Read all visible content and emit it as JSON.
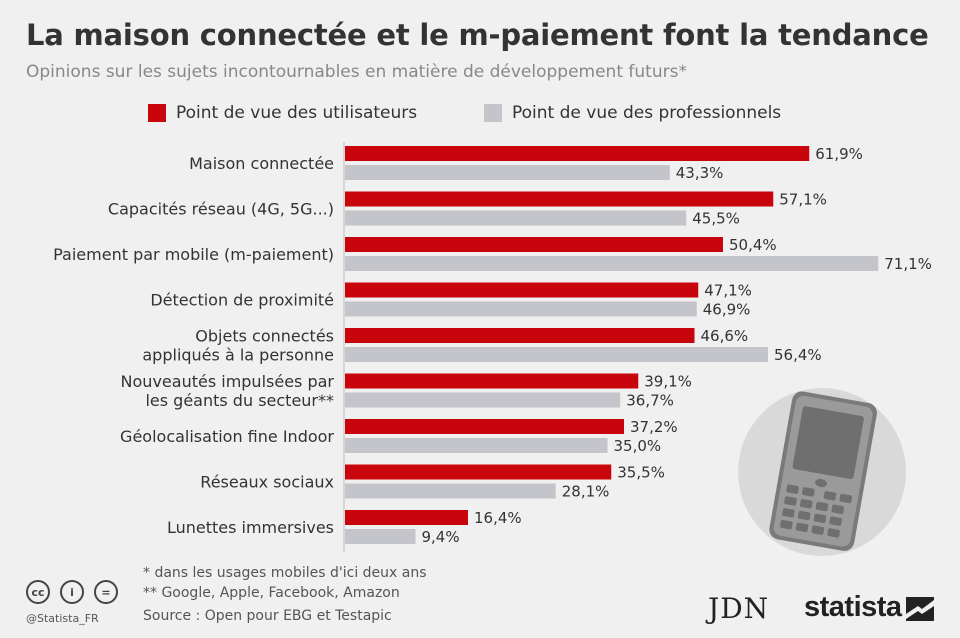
{
  "title": "La maison connectée et le m-paiement font la tendance",
  "subtitle": "Opinions sur les sujets incontournables en matière de développement futurs*",
  "colors": {
    "users": "#c8040c",
    "pros": "#c4c5cb",
    "text": "#333333"
  },
  "chart_data": {
    "type": "bar",
    "orientation": "horizontal",
    "categories": [
      [
        "Maison connectée"
      ],
      [
        "Capacités réseau (4G, 5G...)"
      ],
      [
        "Paiement par mobile (m-paiement)"
      ],
      [
        "Détection de proximité"
      ],
      [
        "Objets connectés",
        "appliqués à la personne"
      ],
      [
        "Nouveautés impulsées par",
        "les géants du secteur**"
      ],
      [
        "Géolocalisation fine Indoor"
      ],
      [
        "Réseaux sociaux"
      ],
      [
        "Lunettes immersives"
      ]
    ],
    "series": [
      {
        "name": "Point de vue des utilisateurs",
        "values": [
          61.9,
          57.1,
          50.4,
          47.1,
          46.6,
          39.1,
          37.2,
          35.5,
          16.4
        ],
        "labels": [
          "61,9%",
          "57,1%",
          "50,4%",
          "47,1%",
          "46,6%",
          "39,1%",
          "37,2%",
          "35,5%",
          "16,4%"
        ]
      },
      {
        "name": "Point de vue des professionnels",
        "values": [
          43.3,
          45.5,
          71.1,
          46.9,
          56.4,
          36.7,
          35.0,
          28.1,
          9.4
        ],
        "labels": [
          "43,3%",
          "45,5%",
          "71,1%",
          "46,9%",
          "56,4%",
          "36,7%",
          "35,0%",
          "28,1%",
          "9,4%"
        ]
      }
    ],
    "unit": "%",
    "legend_position": "top",
    "grid": false
  },
  "footnotes": [
    "*   dans les usages mobiles d'ici deux ans",
    "** Google, Apple, Facebook, Amazon",
    "Source : Open pour EBG et Testapic"
  ],
  "credits": {
    "handle": "@Statista_FR",
    "cc_icons": [
      "cc",
      "i",
      "="
    ],
    "partner_logo": "JDN",
    "brand_logo": "statista"
  },
  "illustration": {
    "icon": "mobile-phone-icon"
  }
}
